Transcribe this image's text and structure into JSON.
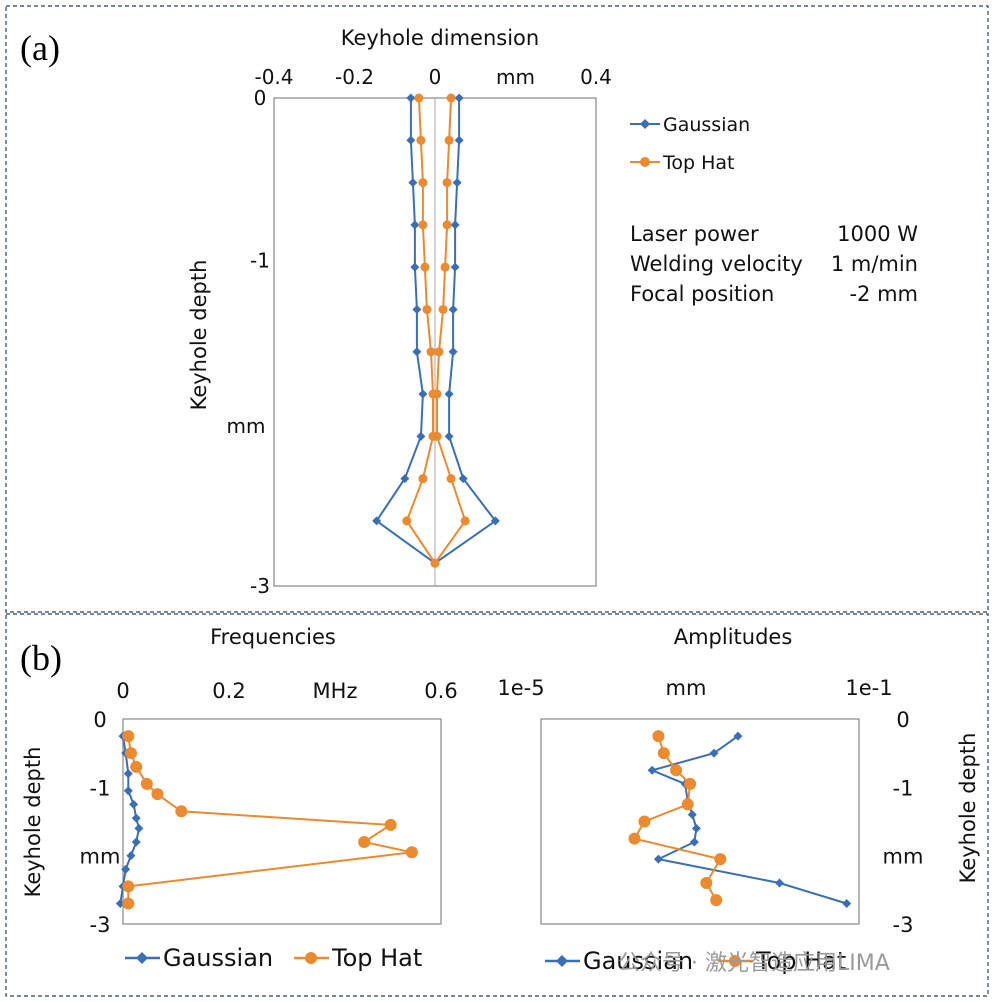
{
  "colors": {
    "gaussian": "#3a6fb5",
    "tophat": "#ec8a2f",
    "frame": "#2f3f5c",
    "axis": "#777777"
  },
  "panel_a": {
    "letter": "(a)",
    "params": [
      {
        "label": "Laser power",
        "value": "1000 W"
      },
      {
        "label": "Welding velocity",
        "value": "1 m/min"
      },
      {
        "label": "Focal position",
        "value": "-2 mm"
      }
    ]
  },
  "panel_b": {
    "letter": "(b)"
  },
  "watermark": "公众号 · 激光智造应用LIMA",
  "chart_data": [
    {
      "id": "keyhole",
      "type": "line",
      "title": "Keyhole dimension",
      "xlabel": "mm",
      "ylabel": "Keyhole depth",
      "ylabel_unit": "mm",
      "x_ticks": [
        -0.4,
        -0.2,
        0,
        0.2,
        0.4
      ],
      "x_tick_labels": [
        "-0.4",
        "-0.2",
        "0",
        "mm",
        "0.4"
      ],
      "y_ticks": [
        0,
        -1,
        -3
      ],
      "xlim": [
        -0.4,
        0.4
      ],
      "ylim": [
        -3,
        0
      ],
      "legend": [
        "Gaussian",
        "Top Hat"
      ],
      "legend_position": "right",
      "series": [
        {
          "name": "Gaussian",
          "marker": "diamond",
          "left": {
            "x": [
              -0.06,
              -0.06,
              -0.055,
              -0.05,
              -0.05,
              -0.045,
              -0.045,
              -0.03,
              -0.035,
              -0.075,
              -0.145,
              0.0
            ],
            "y": [
              0,
              -0.26,
              -0.52,
              -0.78,
              -1.04,
              -1.3,
              -1.56,
              -1.82,
              -2.08,
              -2.34,
              -2.6,
              -2.86
            ]
          },
          "right": {
            "x": [
              0.06,
              0.06,
              0.055,
              0.05,
              0.05,
              0.045,
              0.045,
              0.035,
              0.035,
              0.07,
              0.15,
              0.0
            ],
            "y": [
              0,
              -0.26,
              -0.52,
              -0.78,
              -1.04,
              -1.3,
              -1.56,
              -1.82,
              -2.08,
              -2.34,
              -2.6,
              -2.86
            ]
          }
        },
        {
          "name": "Top Hat",
          "marker": "circle",
          "left": {
            "x": [
              -0.04,
              -0.035,
              -0.03,
              -0.03,
              -0.025,
              -0.02,
              -0.01,
              -0.005,
              -0.005,
              -0.03,
              -0.07,
              0.0
            ],
            "y": [
              0,
              -0.26,
              -0.52,
              -0.78,
              -1.04,
              -1.3,
              -1.56,
              -1.82,
              -2.08,
              -2.34,
              -2.6,
              -2.86
            ]
          },
          "right": {
            "x": [
              0.04,
              0.035,
              0.03,
              0.03,
              0.025,
              0.02,
              0.01,
              0.005,
              0.005,
              0.04,
              0.075,
              0.0
            ],
            "y": [
              0,
              -0.26,
              -0.52,
              -0.78,
              -1.04,
              -1.3,
              -1.56,
              -1.82,
              -2.08,
              -2.34,
              -2.6,
              -2.86
            ]
          }
        }
      ]
    },
    {
      "id": "frequencies",
      "type": "line",
      "title": "Frequencies",
      "xlabel": "MHz",
      "ylabel": "Keyhole depth",
      "ylabel_unit": "mm",
      "x_tick_labels": [
        "0",
        "0.2",
        "MHz",
        "0.6"
      ],
      "y_tick_labels": [
        "0",
        "-1",
        "mm",
        "-3"
      ],
      "xlim": [
        0,
        0.6
      ],
      "ylim": [
        -3,
        0
      ],
      "legend": [
        "Gaussian",
        "Top Hat"
      ],
      "legend_position": "bottom",
      "series": [
        {
          "name": "Gaussian",
          "marker": "diamond",
          "x": [
            0,
            0.005,
            0.01,
            0.01,
            0.02,
            0.025,
            0.03,
            0.025,
            0.015,
            0.005,
            0,
            -0.005
          ],
          "y": [
            -0.25,
            -0.5,
            -0.8,
            -1.05,
            -1.25,
            -1.45,
            -1.6,
            -1.8,
            -2.0,
            -2.2,
            -2.45,
            -2.7
          ]
        },
        {
          "name": "Top Hat",
          "marker": "circle",
          "x": [
            0.01,
            0.015,
            0.025,
            0.045,
            0.065,
            0.11,
            0.505,
            0.455,
            0.545,
            0.01,
            0.01
          ],
          "y": [
            -0.25,
            -0.5,
            -0.7,
            -0.95,
            -1.1,
            -1.35,
            -1.55,
            -1.8,
            -1.95,
            -2.45,
            -2.7
          ]
        }
      ]
    },
    {
      "id": "amplitudes",
      "type": "line",
      "title": "Amplitudes",
      "xlabel": "mm",
      "ylabel": "Keyhole depth",
      "ylabel_unit": "mm",
      "x_scale": "log",
      "x_tick_labels": [
        "1e-5",
        "mm",
        "1e-1"
      ],
      "y_tick_labels": [
        "0",
        "-1",
        "mm",
        "-3"
      ],
      "xlim": [
        1e-05,
        0.1
      ],
      "ylim": [
        -3,
        0
      ],
      "legend": [
        "Gaussian",
        "Top Hat"
      ],
      "legend_position": "bottom",
      "series": [
        {
          "name": "Gaussian",
          "marker": "diamond",
          "x": [
            0.003,
            0.0015,
            0.00025,
            0.00065,
            0.0007,
            0.0008,
            0.0009,
            0.00085,
            0.0003,
            0.01,
            0.07
          ],
          "y": [
            -0.25,
            -0.5,
            -0.75,
            -0.95,
            -1.2,
            -1.4,
            -1.6,
            -1.8,
            -2.05,
            -2.4,
            -2.7
          ]
        },
        {
          "name": "Top Hat",
          "marker": "circle",
          "x": [
            0.0003,
            0.00035,
            0.0005,
            0.00075,
            0.0007,
            0.0002,
            0.00015,
            0.0018,
            0.0012,
            0.0016
          ],
          "y": [
            -0.25,
            -0.5,
            -0.75,
            -0.95,
            -1.25,
            -1.5,
            -1.75,
            -2.05,
            -2.4,
            -2.65
          ]
        }
      ]
    }
  ]
}
